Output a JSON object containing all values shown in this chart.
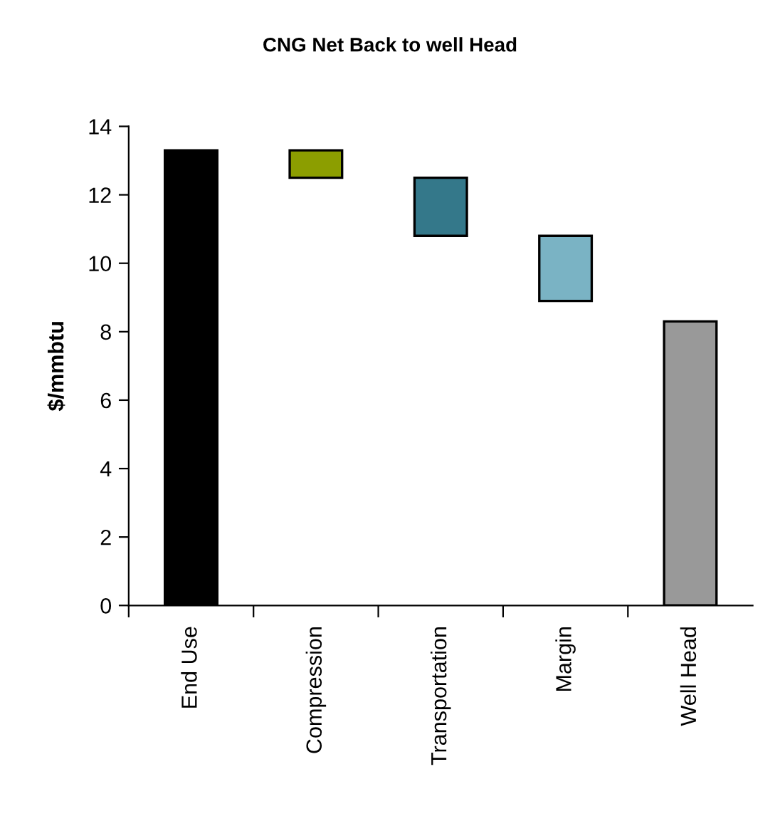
{
  "chart_data": {
    "type": "bar",
    "title": "CNG Net Back to well Head",
    "ylabel": "$/mmbtu",
    "categories": [
      "End Use",
      "Compression",
      "Transportation",
      "Margin",
      "Well Head"
    ],
    "values": [
      13.3,
      0.8,
      1.7,
      1.9,
      8.3
    ],
    "base": [
      0,
      12.5,
      10.8,
      8.9,
      0
    ],
    "colors": [
      "#000000",
      "#8c9e00",
      "#34788a",
      "#7ab3c4",
      "#999999"
    ],
    "ylim": [
      0,
      14
    ],
    "yticks": [
      0,
      2,
      4,
      6,
      8,
      10,
      12,
      14
    ],
    "grid": false
  }
}
